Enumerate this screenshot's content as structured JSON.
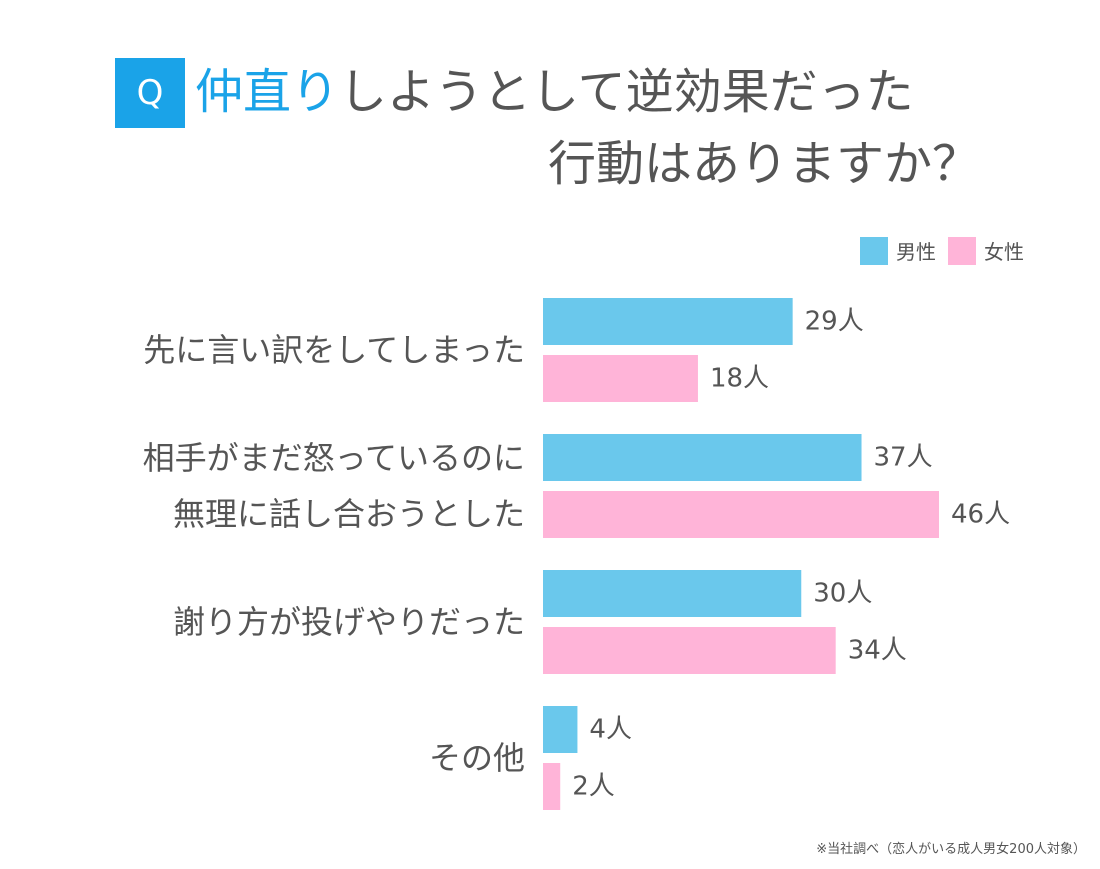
{
  "header": {
    "badge": "Q",
    "title_highlight": "仲直り",
    "title_rest": "しようとして逆効果だった",
    "title_line2": "行動はありますか？"
  },
  "colors": {
    "accent": "#1aa3e8",
    "male": "#6ac8ec",
    "female": "#ffb4d8",
    "text": "#555555"
  },
  "chart_data": {
    "type": "bar",
    "orientation": "horizontal",
    "categories": [
      [
        "先に言い訳をしてしまった"
      ],
      [
        "相手がまだ怒っているのに",
        "無理に話し合おうとした"
      ],
      [
        "謝り方が投げやりだった"
      ],
      [
        "その他"
      ]
    ],
    "series": [
      {
        "name": "男性",
        "values": [
          29,
          37,
          30,
          4
        ],
        "labels": [
          "29人",
          "37人",
          "30人",
          "4人"
        ]
      },
      {
        "name": "女性",
        "values": [
          18,
          46,
          34,
          2
        ],
        "labels": [
          "18人",
          "46人",
          "34人",
          "2人"
        ]
      }
    ],
    "xlim": [
      0,
      46
    ],
    "grid": false,
    "legend": "top-right"
  },
  "footnote": "※当社調べ（恋人がいる成人男女200人対象）"
}
